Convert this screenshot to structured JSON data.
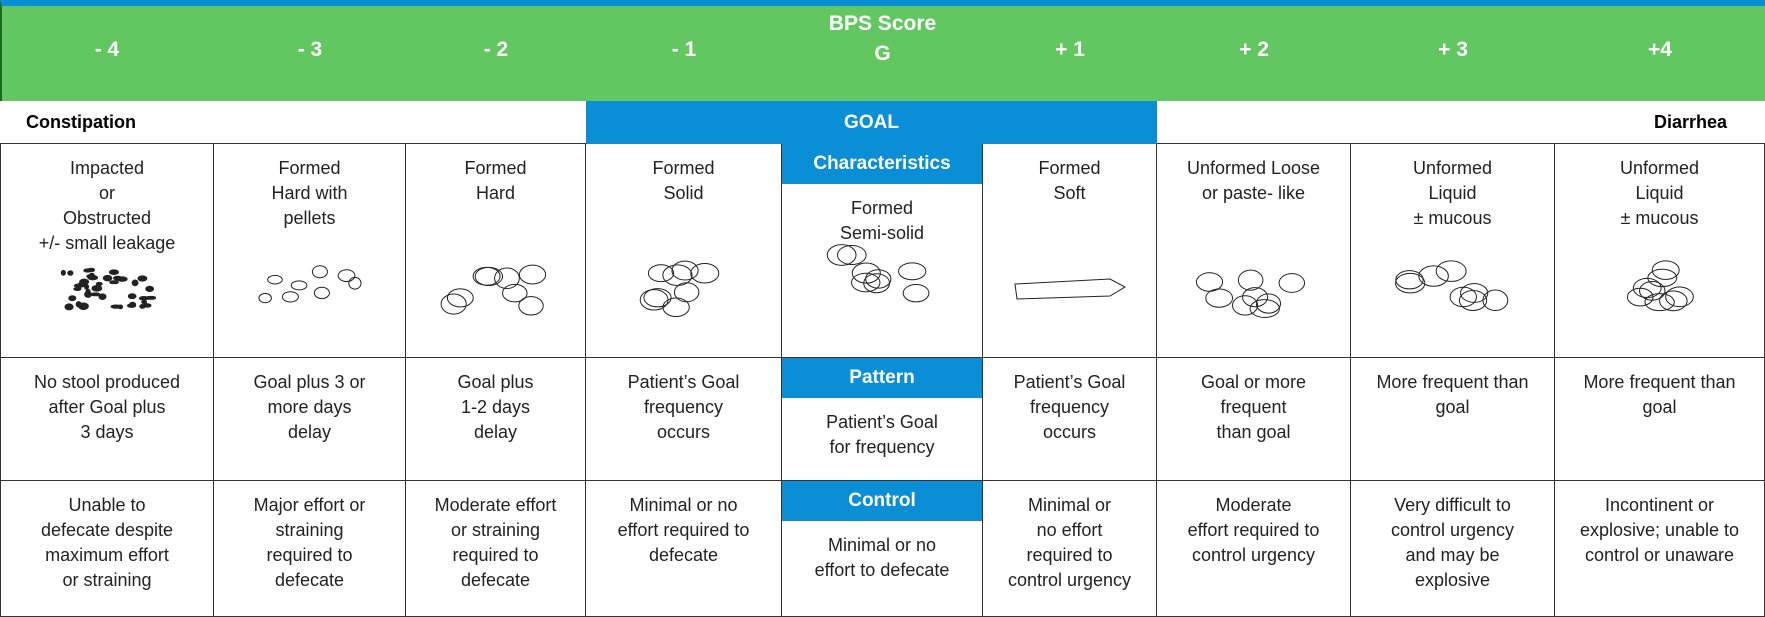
{
  "header": {
    "title": "BPS Score",
    "scores": [
      "- 4",
      "- 3",
      "- 2",
      "- 1",
      "G",
      "+ 1",
      "+ 2",
      "+ 3",
      "+4"
    ]
  },
  "band": {
    "left": "Constipation",
    "goal": "GOAL",
    "right": "Diarrhea"
  },
  "rows": [
    {
      "label": "Characteristics",
      "cells": [
        [
          "Impacted",
          "or",
          "Obstructed",
          "+/- small leakage"
        ],
        [
          "Formed",
          "Hard with",
          "pellets"
        ],
        [
          "Formed",
          "Hard"
        ],
        [
          "Formed",
          "Solid"
        ],
        [
          "Formed",
          "Semi-solid"
        ],
        [
          "Formed",
          "Soft"
        ],
        [
          "Unformed Loose",
          "or paste- like"
        ],
        [
          "Unformed",
          "Liquid",
          "± mucous"
        ],
        [
          "Unformed",
          "Liquid",
          "± mucous"
        ]
      ]
    },
    {
      "label": "Pattern",
      "cells": [
        [
          "No stool produced",
          "after Goal plus",
          "3 days"
        ],
        [
          "Goal plus 3 or",
          "more days",
          "delay"
        ],
        [
          "Goal plus",
          "1-2 days",
          "delay"
        ],
        [
          "Patient’s Goal",
          "frequency",
          "occurs"
        ],
        [
          "Patient’s Goal",
          "for frequency"
        ],
        [
          "Patient’s Goal",
          "frequency",
          "occurs"
        ],
        [
          "Goal or more",
          "frequent",
          "than goal"
        ],
        [
          "More frequent than",
          "goal"
        ],
        [
          "More frequent than",
          "goal"
        ]
      ]
    },
    {
      "label": "Control",
      "cells": [
        [
          "Unable to",
          "defecate despite",
          "maximum  effort",
          "or straining"
        ],
        [
          "Major effort or",
          "straining",
          "required to",
          "defecate"
        ],
        [
          "Moderate effort",
          "or straining",
          "required to",
          "defecate"
        ],
        [
          "Minimal or no",
          "effort required to",
          "defecate"
        ],
        [
          "Minimal or no",
          "effort to defecate"
        ],
        [
          "Minimal or",
          "no effort",
          "required to",
          "control urgency"
        ],
        [
          "Moderate",
          "effort required to",
          "control urgency"
        ],
        [
          "Very difficult to",
          "control urgency",
          "and may be",
          "explosive"
        ],
        [
          "Incontinent  or",
          "explosive; unable to",
          "control or unaware"
        ]
      ]
    }
  ]
}
